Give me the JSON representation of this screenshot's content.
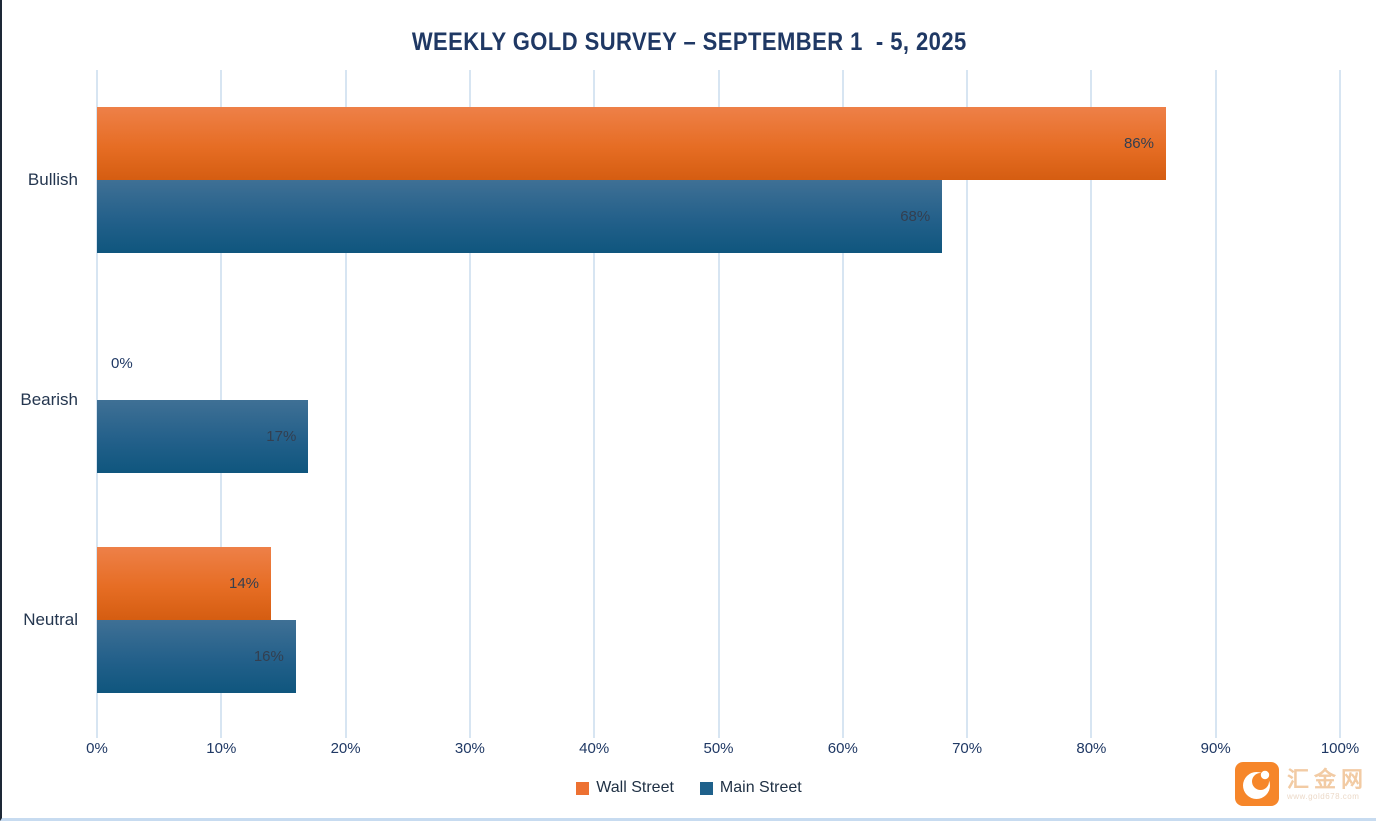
{
  "title": "WEEKLY GOLD SURVEY – SEPTEMBER 1  - 5, 2025",
  "chart_data": {
    "type": "bar",
    "orientation": "horizontal",
    "title": "WEEKLY GOLD SURVEY – SEPTEMBER 1  - 5, 2025",
    "categories": [
      "Bullish",
      "Bearish",
      "Neutral"
    ],
    "series": [
      {
        "name": "Wall Street",
        "values": [
          86,
          0,
          14
        ],
        "swatch_color": "#ed7132",
        "bar_class": "bar-wall"
      },
      {
        "name": "Main Street",
        "values": [
          68,
          17,
          16
        ],
        "swatch_color": "#1f618b",
        "bar_class": "bar-main"
      }
    ],
    "value_suffix": "%",
    "xlim": [
      0,
      100
    ],
    "x_ticks": [
      "0%",
      "10%",
      "20%",
      "30%",
      "40%",
      "50%",
      "60%",
      "70%",
      "80%",
      "90%",
      "100%"
    ],
    "grid": true,
    "data_labels": "inside-end",
    "legend_position": "bottom"
  },
  "legend": {
    "items": [
      {
        "label": "Wall Street",
        "color": "#ed7132"
      },
      {
        "label": "Main Street",
        "color": "#1f618b"
      }
    ]
  },
  "watermark": {
    "brand": "汇金网",
    "url": "www.gold678.com"
  },
  "colors": {
    "title_text": "#1f3864",
    "axis_text": "#1f3864",
    "category_text": "#24364f",
    "bar_label_text": "#333f50",
    "gridline": "#d7e5f2",
    "wall_street_top": "#ee8048",
    "wall_street_bottom": "#d55d11",
    "main_street_top": "#3f7095",
    "main_street_bottom": "#0f567e",
    "logo_orange": "#f6862a"
  }
}
